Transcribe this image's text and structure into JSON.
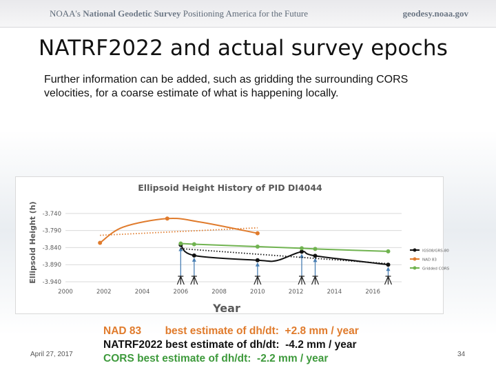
{
  "header": {
    "org_prefix": "NOAA's ",
    "org_name": "National Geodetic Survey",
    "tagline": " Positioning America for the Future",
    "url": "geodesy.noaa.gov"
  },
  "slide": {
    "title": "NATRF2022 and actual survey epochs",
    "subtitle": "Further information can be added, such as gridding the surrounding CORS velocities, for a coarse estimate of what is happening locally.",
    "date": "April 27, 2017",
    "page_number": "34"
  },
  "statements": {
    "nad83": "NAD 83        best estimate of dh/dt:  +2.8 mm / year",
    "natrf": "NATRF2022 best estimate of dh/dt:  -4.2 mm / year",
    "cors": "CORS best estimate of dh/dt:  -2.2 mm / year"
  },
  "colors": {
    "igs": "#111111",
    "nad83": "#e07b2c",
    "cors": "#70b350",
    "arrow": "#4a7fb3",
    "grid": "#d9d9d9"
  },
  "chart_data": {
    "type": "line",
    "title": "Ellipsoid Height History of PID DI4044",
    "xlabel": "Year",
    "ylabel": "Ellipsoid Height (h)",
    "xlim": [
      2000,
      2017.5
    ],
    "ylim": [
      -3.94,
      -3.71
    ],
    "x_ticks": [
      2000,
      2002,
      2004,
      2006,
      2008,
      2010,
      2012,
      2014,
      2016
    ],
    "x_tick_labels": [
      "2000",
      "2002",
      "2004",
      "2006",
      "2008",
      "2010",
      "2012",
      "2014",
      "2016"
    ],
    "y_ticks": [
      -3.74,
      -3.79,
      -3.84,
      -3.89,
      -3.94
    ],
    "y_tick_labels": [
      "-3.740",
      "-3.790",
      "-3.840",
      "-3.890",
      "-3.940"
    ],
    "grid": "horizontal",
    "legend_position": "right",
    "series": [
      {
        "name": "IGS08/GRS-80",
        "color": "#111111",
        "x": [
          2006.0,
          2006.7,
          2010.0,
          2011.0,
          2012.3,
          2013.0,
          2016.8
        ],
        "y": [
          -3.832,
          -3.863,
          -3.877,
          -3.878,
          -3.852,
          -3.864,
          -3.89
        ],
        "markers": [
          true,
          true,
          true,
          false,
          true,
          true,
          true
        ],
        "trend": {
          "x": [
            2006.0,
            2016.8
          ],
          "y": [
            -3.843,
            -3.887
          ]
        }
      },
      {
        "name": "NAD 83",
        "color": "#e07b2c",
        "x": [
          2001.8,
          2003.0,
          2005.3,
          2007.0,
          2010.0
        ],
        "y": [
          -3.826,
          -3.78,
          -3.755,
          -3.765,
          -3.798
        ],
        "markers": [
          true,
          false,
          true,
          false,
          true
        ],
        "trend": {
          "x": [
            2001.8,
            2010.0
          ],
          "y": [
            -3.804,
            -3.782
          ]
        }
      },
      {
        "name": "Gridded CORS",
        "color": "#70b350",
        "x": [
          2006.0,
          2006.7,
          2010.0,
          2012.3,
          2013.0,
          2016.8
        ],
        "y": [
          -3.828,
          -3.83,
          -3.837,
          -3.842,
          -3.844,
          -3.851
        ],
        "markers": [
          true,
          true,
          true,
          true,
          true,
          true
        ]
      }
    ],
    "survey_epochs": [
      2006.0,
      2006.7,
      2010.0,
      2012.3,
      2013.0,
      2016.8
    ]
  }
}
